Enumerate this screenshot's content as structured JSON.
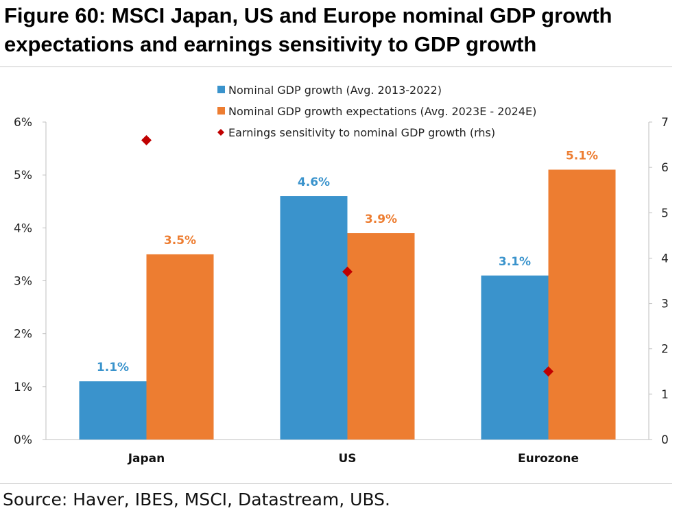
{
  "title": "Figure 60: MSCI Japan, US and Europe nominal GDP growth expectations and earnings sensitivity to GDP growth",
  "source": "Source: Haver, IBES, MSCI, Datastream, UBS.",
  "chart_data": {
    "type": "bar",
    "categories": [
      "Japan",
      "US",
      "Eurozone"
    ],
    "series": [
      {
        "name": "Nominal GDP growth (Avg. 2013-2022)",
        "type": "bar",
        "axis": "left",
        "values": [
          1.1,
          4.6,
          3.1
        ],
        "labels": [
          "1.1%",
          "4.6%",
          "3.1%"
        ],
        "color": "#3a93cc"
      },
      {
        "name": "Nominal GDP growth expectations (Avg. 2023E - 2024E)",
        "type": "bar",
        "axis": "left",
        "values": [
          3.5,
          3.9,
          5.1
        ],
        "labels": [
          "3.5%",
          "3.9%",
          "5.1%"
        ],
        "color": "#ed7d31"
      },
      {
        "name": "Earnings sensitivity to nominal GDP growth (rhs)",
        "type": "scatter",
        "marker": "diamond",
        "axis": "right",
        "values": [
          6.6,
          3.7,
          1.5
        ],
        "color": "#c00000"
      }
    ],
    "left_axis": {
      "ylim": [
        0,
        6
      ],
      "ticks": [
        "0%",
        "1%",
        "2%",
        "3%",
        "4%",
        "5%",
        "6%"
      ]
    },
    "right_axis": {
      "ylim": [
        0,
        7
      ],
      "ticks": [
        "0",
        "1",
        "2",
        "3",
        "4",
        "5",
        "6",
        "7"
      ]
    },
    "legend_position": "top-center",
    "grid": false
  }
}
